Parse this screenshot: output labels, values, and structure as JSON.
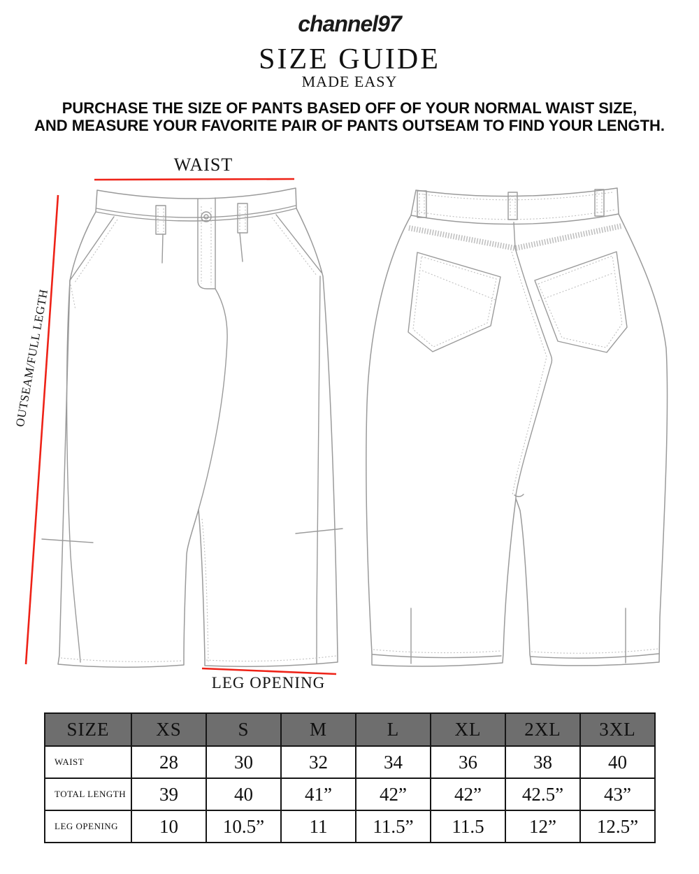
{
  "header": {
    "brand": "channel97",
    "title": "SIZE GUIDE",
    "subtitle": "MADE EASY",
    "instructions": [
      "PURCHASE THE SIZE OF PANTS BASED OFF OF YOUR NORMAL WAIST SIZE,",
      "AND MEASURE YOUR FAVORITE PAIR OF PANTS OUTSEAM TO FIND YOUR LENGTH."
    ]
  },
  "diagram": {
    "waist_label": "WAIST",
    "outseam_label": "OUTSEAM/FULL LEGTH",
    "leg_opening_label": "LEG OPENING",
    "annotation_color": "#ee2217",
    "sketch_line_color": "#9a9a9a",
    "sketch_dot_color": "#c0c0c0"
  },
  "size_table": {
    "header_bg": "#6e6e6e",
    "columns": [
      "SIZE",
      "XS",
      "S",
      "M",
      "L",
      "XL",
      "2XL",
      "3XL"
    ],
    "rows": [
      {
        "label": "WAIST",
        "values": [
          "28",
          "30",
          "32",
          "34",
          "36",
          "38",
          "40"
        ]
      },
      {
        "label": "TOTAL LENGTH",
        "values": [
          "39",
          "40",
          "41”",
          "42”",
          "42”",
          "42.5”",
          "43”"
        ]
      },
      {
        "label": "LEG OPENING",
        "values": [
          "10",
          "10.5”",
          "11",
          "11.5”",
          "11.5",
          "12”",
          "12.5”"
        ]
      }
    ]
  }
}
